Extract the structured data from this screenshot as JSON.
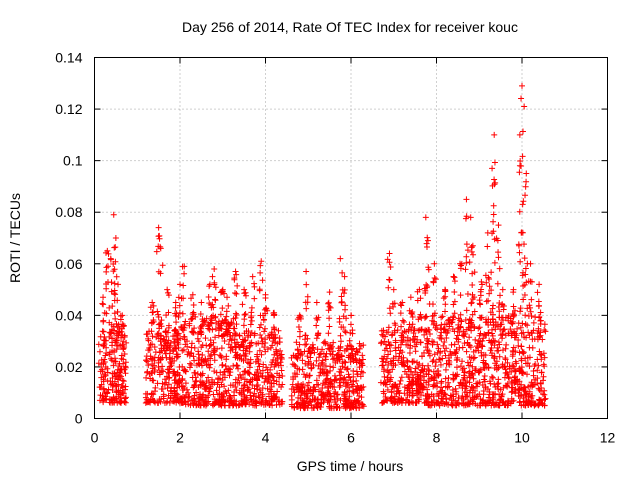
{
  "chart_data": {
    "type": "scatter",
    "title": "Day 256 of 2014, Rate Of TEC Index for receiver kouc",
    "xlabel": "GPS time / hours",
    "ylabel": "ROTI / TECUs",
    "xlim": [
      0,
      12
    ],
    "ylim": [
      0,
      0.14
    ],
    "xticks": [
      "0",
      "2",
      "4",
      "6",
      "8",
      "10",
      "12"
    ],
    "yticks": [
      "0",
      "0.02",
      "0.04",
      "0.06",
      "0.08",
      "0.1",
      "0.12",
      "0.14"
    ],
    "grid": true,
    "marker": "+",
    "color": "#ff0000",
    "series": [
      {
        "name": "ROTI",
        "clusters": [
          {
            "x": [
              0.1,
              0.75
            ],
            "base": [
              0.006,
              0.035
            ],
            "peaks": [
              [
                0.2,
                0.047
              ],
              [
                0.3,
                0.065
              ],
              [
                0.38,
                0.062
              ],
              [
                0.45,
                0.079
              ],
              [
                0.5,
                0.07
              ],
              [
                0.55,
                0.052
              ],
              [
                0.65,
                0.04
              ]
            ]
          },
          {
            "x": [
              1.2,
              2.1
            ],
            "base": [
              0.006,
              0.035
            ],
            "peaks": [
              [
                1.35,
                0.045
              ],
              [
                1.5,
                0.074
              ],
              [
                1.55,
                0.066
              ],
              [
                1.7,
                0.05
              ],
              [
                1.9,
                0.045
              ],
              [
                2.0,
                0.052
              ],
              [
                2.1,
                0.059
              ]
            ]
          },
          {
            "x": [
              2.1,
              3.3
            ],
            "base": [
              0.005,
              0.04
            ],
            "peaks": [
              [
                2.3,
                0.048
              ],
              [
                2.5,
                0.045
              ],
              [
                2.7,
                0.052
              ],
              [
                2.8,
                0.058
              ],
              [
                3.0,
                0.05
              ],
              [
                3.1,
                0.047
              ],
              [
                3.3,
                0.057
              ]
            ]
          },
          {
            "x": [
              3.3,
              4.4
            ],
            "base": [
              0.005,
              0.035
            ],
            "peaks": [
              [
                3.5,
                0.05
              ],
              [
                3.7,
                0.055
              ],
              [
                3.9,
                0.061
              ],
              [
                4.0,
                0.048
              ],
              [
                4.2,
                0.041
              ]
            ]
          },
          {
            "x": [
              4.6,
              6.3
            ],
            "base": [
              0.004,
              0.03
            ],
            "peaks": [
              [
                4.8,
                0.04
              ],
              [
                4.95,
                0.057
              ],
              [
                5.2,
                0.045
              ],
              [
                5.5,
                0.049
              ],
              [
                5.75,
                0.062
              ],
              [
                5.85,
                0.055
              ],
              [
                6.0,
                0.04
              ]
            ]
          },
          {
            "x": [
              6.7,
              7.8
            ],
            "base": [
              0.006,
              0.035
            ],
            "peaks": [
              [
                6.9,
                0.064
              ],
              [
                7.0,
                0.05
              ],
              [
                7.2,
                0.045
              ],
              [
                7.4,
                0.047
              ],
              [
                7.6,
                0.05
              ],
              [
                7.75,
                0.078
              ],
              [
                7.8,
                0.069
              ]
            ]
          },
          {
            "x": [
              7.8,
              8.9
            ],
            "base": [
              0.005,
              0.04
            ],
            "peaks": [
              [
                7.95,
                0.06
              ],
              [
                8.2,
                0.05
              ],
              [
                8.4,
                0.055
              ],
              [
                8.55,
                0.06
              ],
              [
                8.7,
                0.085
              ],
              [
                8.8,
                0.078
              ],
              [
                8.85,
                0.067
              ]
            ]
          },
          {
            "x": [
              8.9,
              9.6
            ],
            "base": [
              0.005,
              0.04
            ],
            "peaks": [
              [
                9.05,
                0.053
              ],
              [
                9.2,
                0.072
              ],
              [
                9.3,
                0.097
              ],
              [
                9.35,
                0.11
              ],
              [
                9.45,
                0.075
              ],
              [
                9.55,
                0.05
              ]
            ]
          },
          {
            "x": [
              9.6,
              10.55
            ],
            "base": [
              0.005,
              0.04
            ],
            "peaks": [
              [
                9.8,
                0.05
              ],
              [
                9.95,
                0.11
              ],
              [
                10.0,
                0.129
              ],
              [
                10.05,
                0.121
              ],
              [
                10.1,
                0.095
              ],
              [
                10.2,
                0.06
              ],
              [
                10.4,
                0.052
              ]
            ]
          }
        ]
      }
    ]
  }
}
